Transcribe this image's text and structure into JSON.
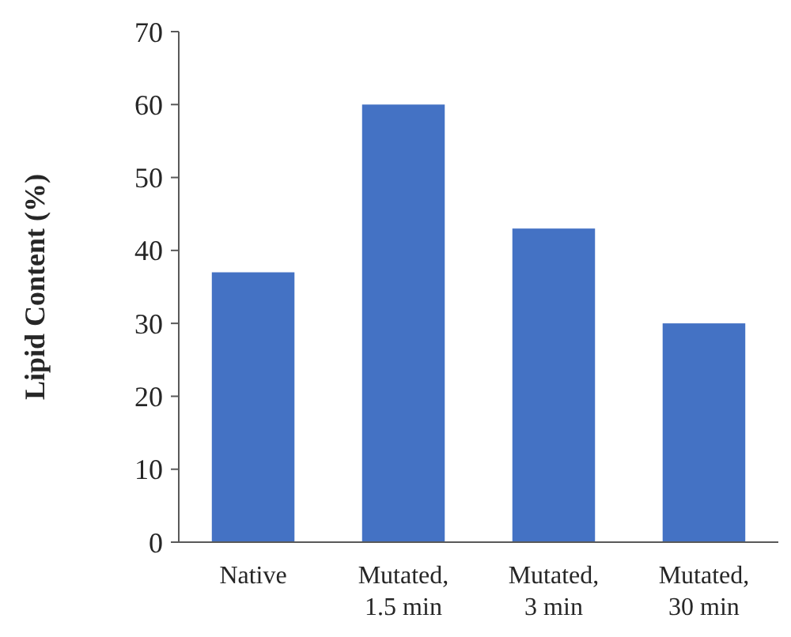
{
  "chart_data": {
    "type": "bar",
    "ylabel": "Lipid Content (%)",
    "categories": [
      "Native",
      "Mutated, 1.5 min",
      "Mutated, 3 min",
      "Mutated, 30 min"
    ],
    "values": [
      37,
      60,
      43,
      30
    ],
    "color": "#4472c4",
    "ylim": [
      0,
      70
    ],
    "yticks": [
      0,
      10,
      20,
      30,
      40,
      50,
      60,
      70
    ],
    "grid": false
  }
}
